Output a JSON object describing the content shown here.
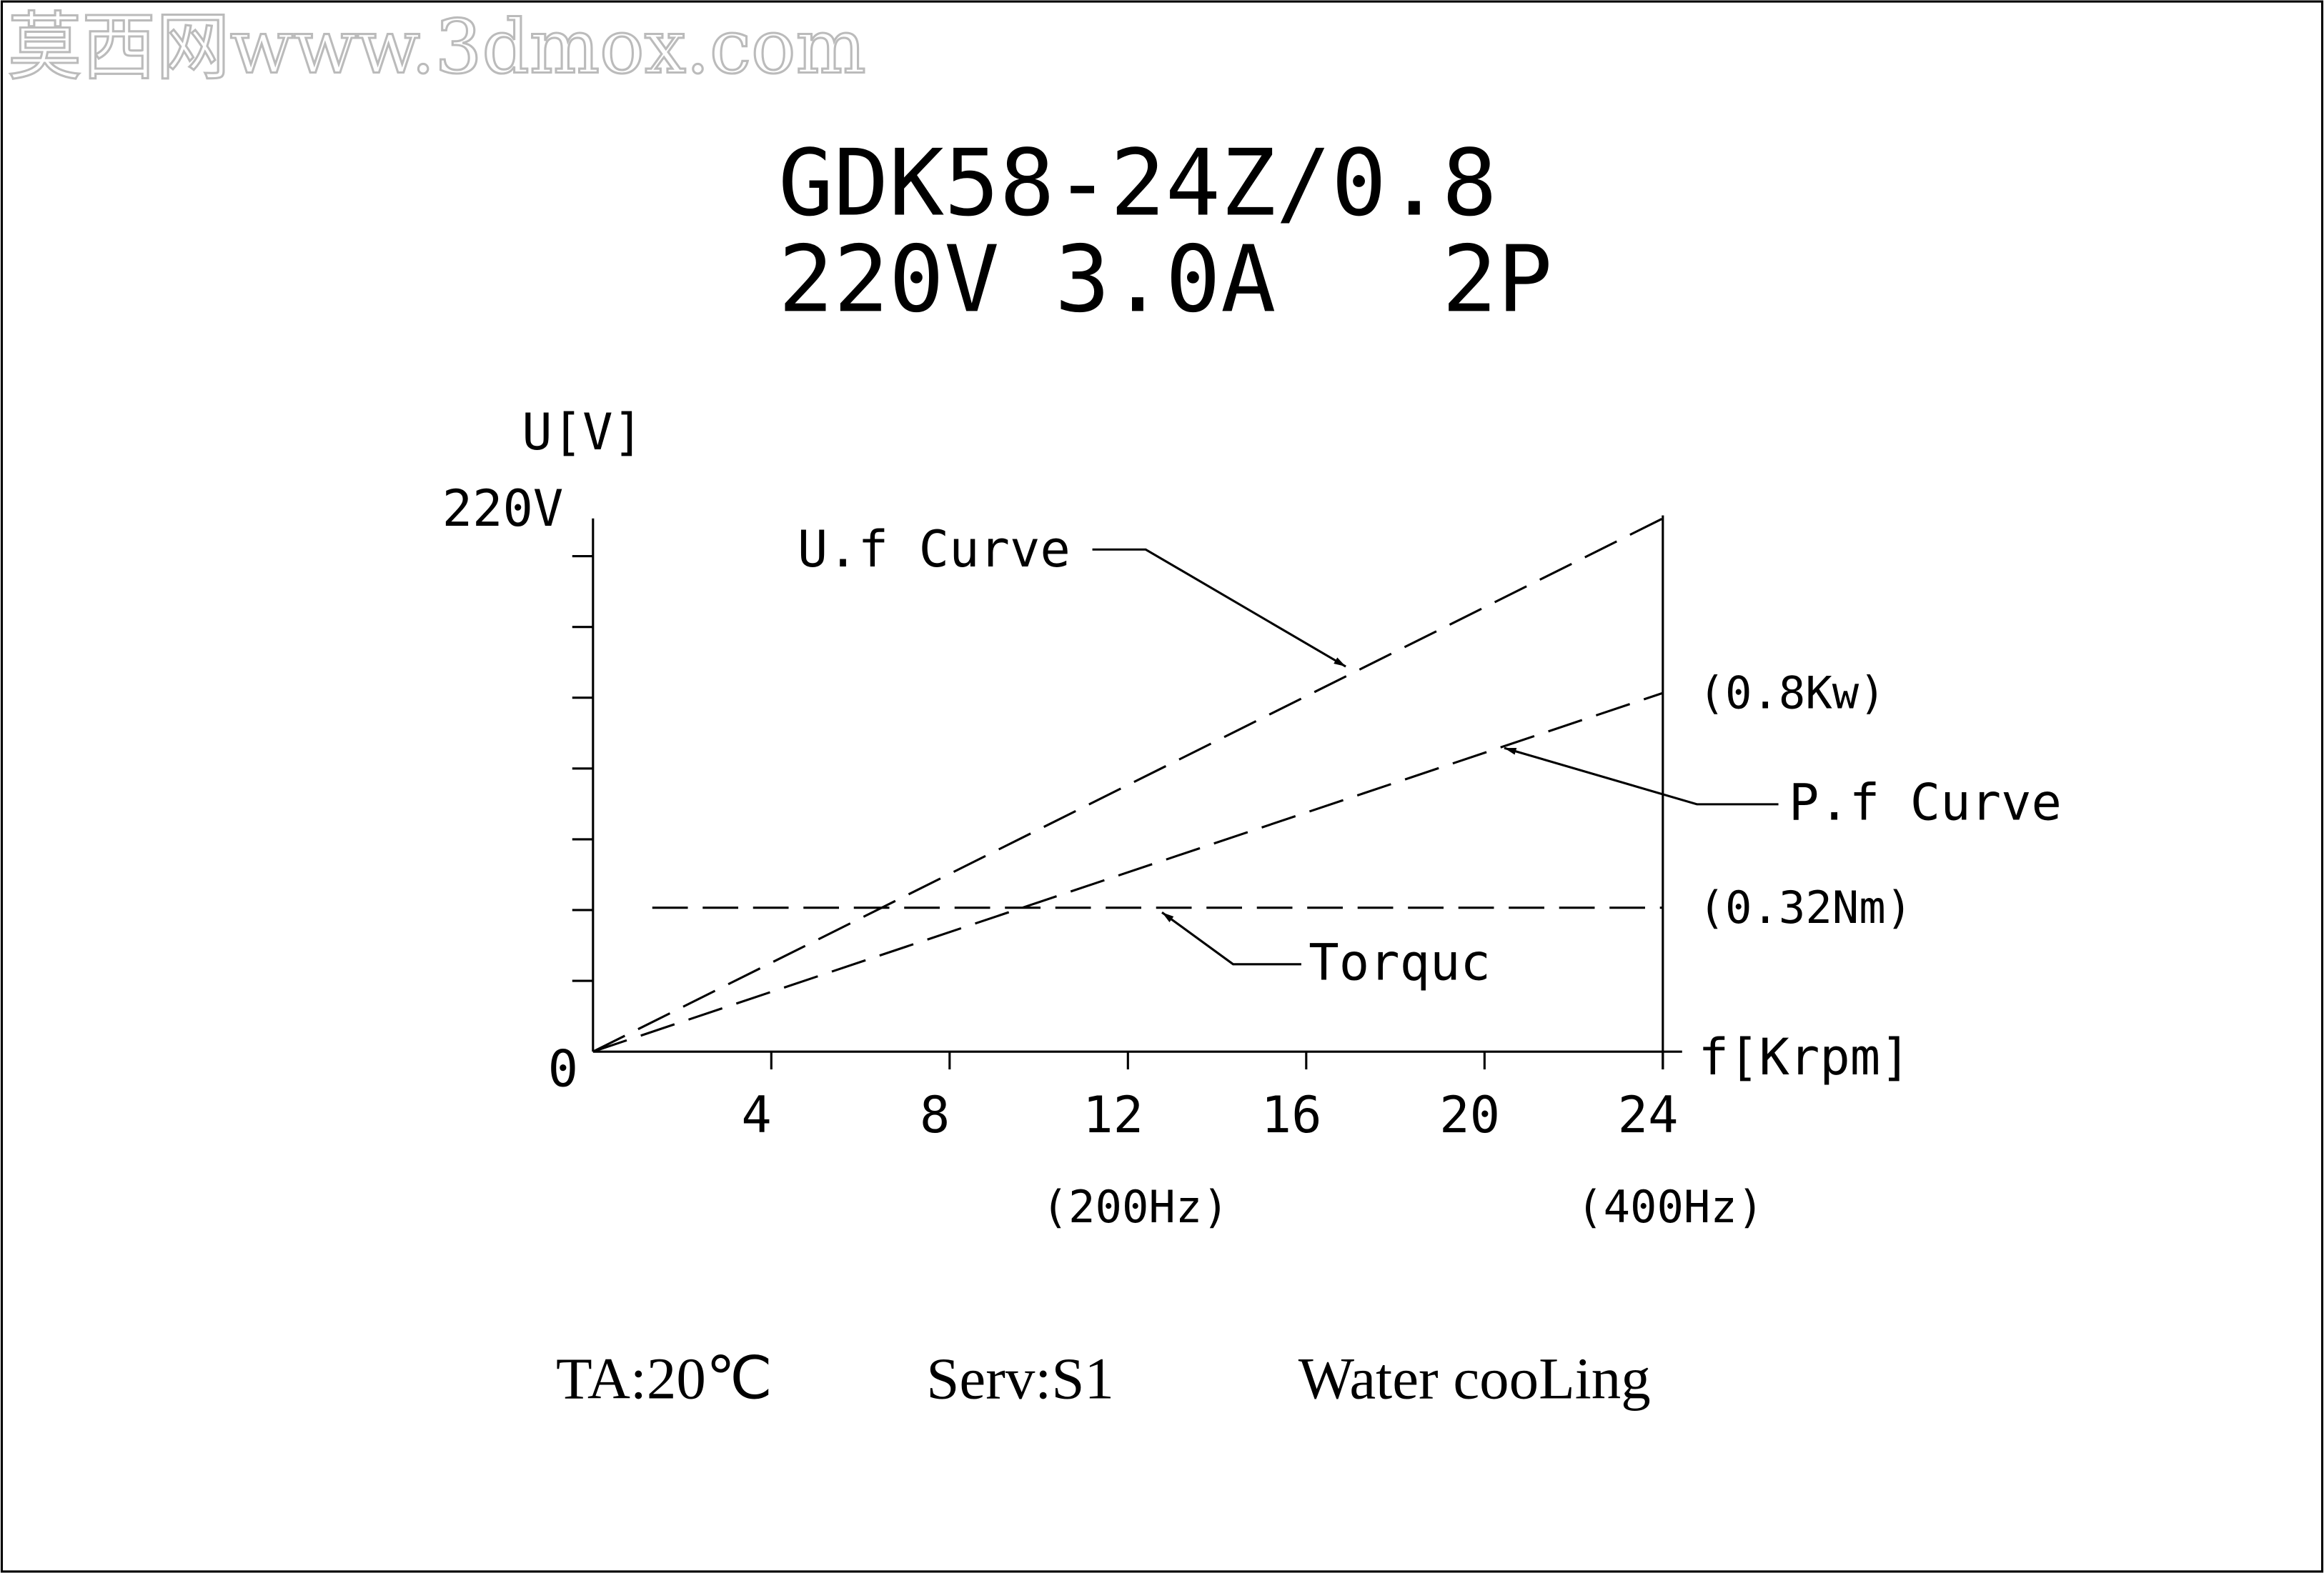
{
  "watermark": "莫西网www.3dmox.com",
  "chart_data": {
    "type": "line",
    "title": "GDK58-24Z/0.8",
    "subtitle": "220V 3.0A   2P",
    "x_label": "f[Krpm]",
    "y_label": "U[V]",
    "xlim": [
      0,
      24
    ],
    "xticks": [
      4,
      8,
      12,
      16,
      20,
      24
    ],
    "ylim": [
      0,
      226
    ],
    "yticks": [
      0,
      {
        "value": 220,
        "label": "220V"
      }
    ],
    "yminor_ticks": [
      30,
      60,
      90,
      120,
      150,
      180,
      210
    ],
    "dashed": true,
    "series": [
      {
        "name": "U.f Curve",
        "color": "#000000",
        "x": [
          0,
          24
        ],
        "values": [
          0,
          226
        ]
      },
      {
        "name": "P.f Curve",
        "color": "#000000",
        "x": [
          0,
          24
        ],
        "values": [
          0,
          152
        ],
        "end_label": "(0.8Kw)"
      },
      {
        "name": "Torquc",
        "color": "#000000",
        "x": [
          1.33,
          24
        ],
        "values": [
          61,
          61
        ],
        "end_label": "(0.32Nm)"
      }
    ],
    "annotations": [
      {
        "text": "(200Hz)",
        "x": 12
      },
      {
        "text": "(400Hz)",
        "x": 24
      }
    ]
  },
  "footer": [
    "TA:20℃",
    "Serv:S1",
    "Water cooLing"
  ]
}
